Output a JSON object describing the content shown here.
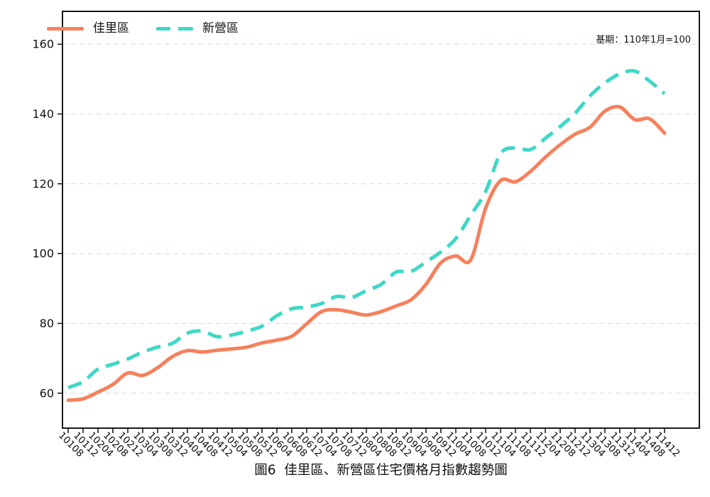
{
  "title": "圖6  佳里區、新營區住宅價格月指數趨勢圖",
  "note": "基期：110年1月=100",
  "chart_data": {
    "type": "line",
    "title": "圖6 佳里區、新營區住宅價格月指數趨勢圖",
    "note": "基期：110年1月=100",
    "xlabel": "",
    "ylabel": "",
    "ylim": [
      50,
      169
    ],
    "yticks": [
      60,
      80,
      100,
      120,
      140,
      160
    ],
    "grid": "horizontal-dashed",
    "legend_position": "top-left",
    "grid_color": "#d9dde1",
    "axis_color": "#000000",
    "categories": [
      "10108",
      "10112",
      "10204",
      "10208",
      "10212",
      "10304",
      "10308",
      "10312",
      "10404",
      "10408",
      "10412",
      "10504",
      "10508",
      "10512",
      "10604",
      "10608",
      "10612",
      "10704",
      "10708",
      "10712",
      "10804",
      "10808",
      "10812",
      "10904",
      "10908",
      "10912",
      "11004",
      "11008",
      "11012",
      "11104",
      "11108",
      "11112",
      "11204",
      "11208",
      "11212",
      "11304",
      "11308",
      "11312",
      "11404",
      "11408",
      "11412"
    ],
    "series": [
      {
        "name": "佳里區",
        "color": "#F5815C",
        "style": "solid",
        "values": [
          58.0,
          58.4,
          60.3,
          62.5,
          65.8,
          65.1,
          67.3,
          70.5,
          72.2,
          71.8,
          72.3,
          72.7,
          73.2,
          74.4,
          75.2,
          76.3,
          79.9,
          83.4,
          83.9,
          83.2,
          82.4,
          83.4,
          85.0,
          86.8,
          91.2,
          97.4,
          99.3,
          98.2,
          113.0,
          120.9,
          120.6,
          123.5,
          127.6,
          131.2,
          134.2,
          136.2,
          140.8,
          142.0,
          138.4,
          138.6,
          134.5
        ]
      },
      {
        "name": "新營區",
        "color": "#3FD7C6",
        "style": "dashed",
        "values": [
          61.6,
          63.3,
          66.9,
          68.3,
          69.8,
          71.8,
          73.2,
          74.3,
          77.2,
          77.8,
          76.2,
          76.7,
          77.8,
          79.2,
          82.2,
          84.2,
          84.7,
          85.7,
          87.7,
          87.4,
          89.4,
          91.2,
          94.7,
          94.9,
          97.6,
          100.5,
          104.3,
          111.0,
          117.8,
          128.6,
          130.3,
          129.8,
          133.0,
          136.4,
          140.2,
          145.2,
          148.9,
          151.5,
          152.3,
          149.4,
          145.8
        ]
      }
    ]
  }
}
